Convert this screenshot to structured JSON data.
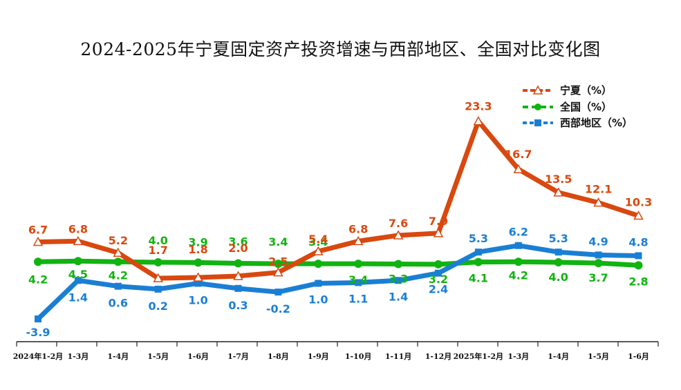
{
  "chart_data": {
    "type": "line",
    "title": "2024-2025年宁夏固定资产投资增速与西部地区、全国对比变化图",
    "categories": [
      "2024年1-2月",
      "1-3月",
      "1-4月",
      "1-5月",
      "1-6月",
      "1-7月",
      "1-8月",
      "1-9月",
      "1-10月",
      "1-11月",
      "1-12月",
      "2025年1-2月",
      "1-3月",
      "1-4月",
      "1-5月",
      "1-6月"
    ],
    "series": [
      {
        "name": "宁夏（%）",
        "color": "#d9480f",
        "marker": "triangle",
        "values": [
          6.7,
          6.8,
          5.2,
          1.7,
          1.8,
          2.0,
          2.5,
          5.4,
          6.8,
          7.6,
          7.9,
          23.3,
          16.7,
          13.5,
          12.1,
          10.3
        ]
      },
      {
        "name": "全国（%）",
        "color": "#11b311",
        "marker": "circle",
        "values": [
          4.2,
          4.5,
          4.2,
          4.0,
          3.9,
          3.6,
          3.4,
          3.4,
          3.4,
          3.3,
          3.2,
          4.1,
          4.2,
          4.0,
          3.7,
          2.8
        ]
      },
      {
        "name": "西部地区（%）",
        "color": "#1a7fd4",
        "marker": "square",
        "values": [
          -3.9,
          1.4,
          0.6,
          0.2,
          1.0,
          0.3,
          -0.2,
          1.0,
          1.1,
          1.4,
          2.4,
          5.3,
          6.2,
          5.3,
          4.9,
          4.8
        ]
      }
    ],
    "legend": "top-right",
    "grid": false
  }
}
